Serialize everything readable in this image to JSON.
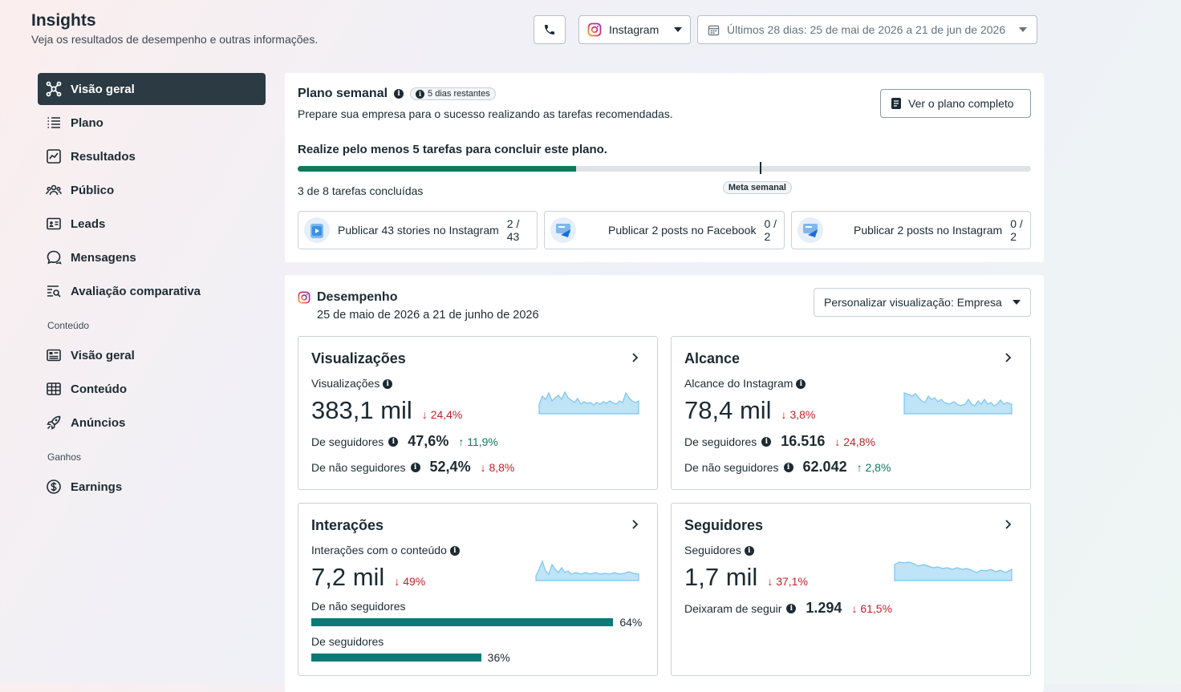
{
  "header": {
    "title": "Insights",
    "subtitle": "Veja os resultados de desempenho e outras informações.",
    "platform": "Instagram",
    "date_range": "Últimos 28 dias: 25 de mai de 2026 a 21 de jun de 2026"
  },
  "sidebar": {
    "items": [
      {
        "label": "Visão geral",
        "icon": "hub-icon"
      },
      {
        "label": "Plano",
        "icon": "list-icon"
      },
      {
        "label": "Resultados",
        "icon": "chart-icon"
      },
      {
        "label": "Público",
        "icon": "people-icon"
      },
      {
        "label": "Leads",
        "icon": "contact-card-icon"
      },
      {
        "label": "Mensagens",
        "icon": "chat-icon"
      },
      {
        "label": "Avaliação comparativa",
        "icon": "search-list-icon"
      }
    ],
    "section_content": "Conteúdo",
    "content_items": [
      {
        "label": "Visão geral",
        "icon": "overview-icon"
      },
      {
        "label": "Conteúdo",
        "icon": "grid-icon"
      },
      {
        "label": "Anúncios",
        "icon": "rocket-icon"
      }
    ],
    "section_earnings": "Ganhos",
    "earnings_items": [
      {
        "label": "Earnings",
        "icon": "dollar-icon"
      }
    ]
  },
  "plan": {
    "title": "Plano semanal",
    "badge": "5 dias restantes",
    "description": "Prepare sua empresa para o sucesso realizando as tarefas recomendadas.",
    "button": "Ver o plano completo",
    "goal": "Realize pelo menos 5 tarefas para concluir este plano.",
    "progress_text": "3 de 8 tarefas concluídas",
    "progress_fraction": 0.38,
    "goal_fraction": 0.63,
    "goal_label": "Meta semanal",
    "tasks": [
      {
        "label": "Publicar 43 stories no Instagram",
        "count": "2 / 43"
      },
      {
        "label": "Publicar 2 posts no Facebook",
        "count": "0 / 2"
      },
      {
        "label": "Publicar 2 posts no Instagram",
        "count": "0 / 2"
      }
    ]
  },
  "performance": {
    "title": "Desempenho",
    "date": "25 de maio de 2026 a 21 de junho de 2026",
    "customize": "Personalizar visualização: Empresa",
    "views": {
      "title": "Visualizações",
      "label": "Visualizações",
      "value": "383,1 mil",
      "change": "24,4%",
      "row1_label": "De seguidores",
      "row1_value": "47,6%",
      "row1_change": "11,9%",
      "row2_label": "De não seguidores",
      "row2_value": "52,4%",
      "row2_change": "8,8%"
    },
    "reach": {
      "title": "Alcance",
      "label": "Alcance do Instagram",
      "value": "78,4 mil",
      "change": "3,8%",
      "row1_label": "De seguidores",
      "row1_value": "16.516",
      "row1_change": "24,8%",
      "row2_label": "De não seguidores",
      "row2_value": "62.042",
      "row2_change": "2,8%"
    },
    "interactions": {
      "title": "Interações",
      "label": "Interações com o conteúdo",
      "value": "7,2 mil",
      "change": "49%",
      "bar1_label": "De não seguidores",
      "bar1_pct": "64%",
      "bar1_value": 64,
      "bar2_label": "De seguidores",
      "bar2_pct": "36%",
      "bar2_value": 36
    },
    "followers": {
      "title": "Seguidores",
      "label": "Seguidores",
      "value": "1,7 mil",
      "change": "37,1%",
      "row1_label": "Deixaram de seguir",
      "row1_value": "1.294",
      "row1_change": "61,5%"
    }
  },
  "colors": {
    "accent_dark": "#2b3a43",
    "progress": "#0d7a5b",
    "down": "#c3212a",
    "up": "#0d7a5b",
    "bar": "#0a7a78",
    "spark_fill": "#bfe3f7",
    "spark_line": "#7cc4ee"
  }
}
